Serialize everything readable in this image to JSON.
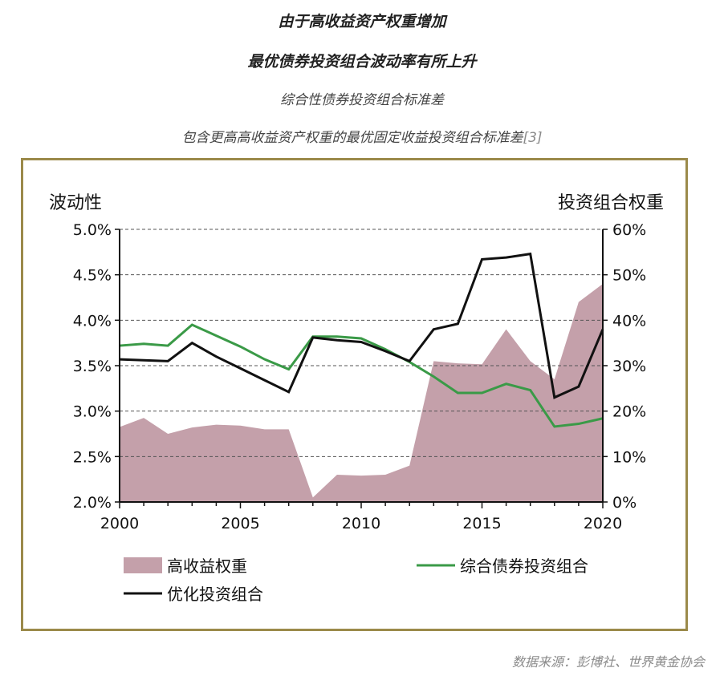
{
  "header": {
    "title_line1": "由于高收益资产权重增加",
    "title_line2": "最优债券投资组合波动率有所上升",
    "subtitle1": "综合性债券投资组合标准差",
    "subtitle2": "包含更高高收益资产权重的最优固定收益投资组合标准差",
    "subtitle2_ref": "[3]"
  },
  "source": "数据来源：彭博社、世界黄金协会",
  "colors": {
    "area": "#c4a0aa",
    "green": "#3a9a47",
    "black": "#111111",
    "frame": "#9b8a4a",
    "grid": "#555555"
  },
  "chart_data": {
    "type": "line",
    "left_axis_title": "波动性",
    "right_axis_title": "投资组合权重",
    "ylim_left": [
      2.0,
      5.0
    ],
    "ylim_right": [
      0,
      60
    ],
    "xlim": [
      2000,
      2020
    ],
    "x_ticks": [
      2000,
      2005,
      2010,
      2015,
      2020
    ],
    "left_ticks": [
      "2.0%",
      "2.5%",
      "3.0%",
      "3.5%",
      "4.0%",
      "4.5%",
      "5.0%"
    ],
    "right_ticks": [
      "0%",
      "10%",
      "20%",
      "30%",
      "40%",
      "50%",
      "60%"
    ],
    "grid": "horizontal dashed",
    "legend_position": "bottom",
    "x": [
      2000,
      2001,
      2002,
      2003,
      2004,
      2005,
      2006,
      2007,
      2008,
      2009,
      2010,
      2011,
      2012,
      2013,
      2014,
      2015,
      2016,
      2017,
      2018,
      2019,
      2020
    ],
    "series": [
      {
        "name": "高收益权重",
        "type": "area",
        "axis": "right",
        "values": [
          16.5,
          18.5,
          15.0,
          16.4,
          17.0,
          16.8,
          16.0,
          16.0,
          1.0,
          6.0,
          5.8,
          6.0,
          8.0,
          31.0,
          30.5,
          30.3,
          38.0,
          31.0,
          27.0,
          44.0,
          48.0
        ]
      },
      {
        "name": "综合债券投资组合",
        "type": "line",
        "axis": "left",
        "values": [
          3.72,
          3.74,
          3.72,
          3.95,
          3.83,
          3.71,
          3.57,
          3.46,
          3.82,
          3.82,
          3.8,
          3.68,
          3.54,
          3.38,
          3.2,
          3.2,
          3.3,
          3.23,
          2.83,
          2.86,
          2.92
        ]
      },
      {
        "name": "优化投资组合",
        "type": "line",
        "axis": "left",
        "values": [
          3.57,
          3.56,
          3.55,
          3.75,
          3.6,
          3.47,
          3.34,
          3.21,
          3.81,
          3.78,
          3.76,
          3.66,
          3.55,
          3.9,
          3.96,
          4.67,
          4.69,
          4.73,
          3.15,
          3.27,
          3.9
        ]
      }
    ]
  }
}
